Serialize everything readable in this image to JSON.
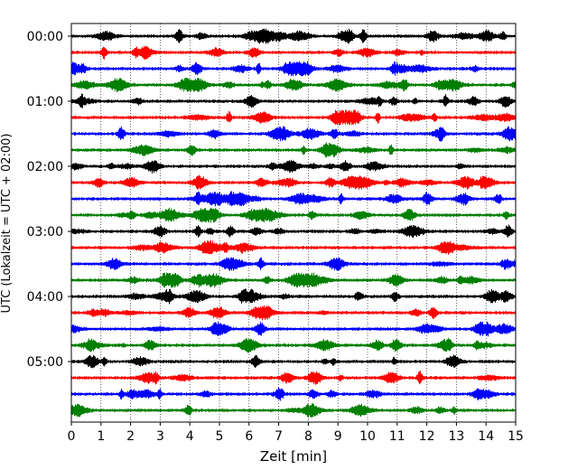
{
  "chart_data": {
    "type": "line",
    "title": "",
    "xlabel": "Zeit  [min]",
    "ylabel": "UTC (Lokalzeit = UTC + 02:00)",
    "xlim": [
      0,
      15
    ],
    "x_ticks": [
      "0",
      "1",
      "2",
      "3",
      "4",
      "5",
      "6",
      "7",
      "8",
      "9",
      "10",
      "11",
      "12",
      "13",
      "14",
      "15"
    ],
    "y_tick_labels": [
      "00:00",
      "01:00",
      "02:00",
      "03:00",
      "04:00",
      "05:00"
    ],
    "grid": "vertical dotted",
    "traces_count": 24,
    "minutes_per_trace": 15,
    "series_colors": [
      "#000000",
      "#ff0000",
      "#0000ff",
      "#008000"
    ],
    "legend": "none"
  }
}
